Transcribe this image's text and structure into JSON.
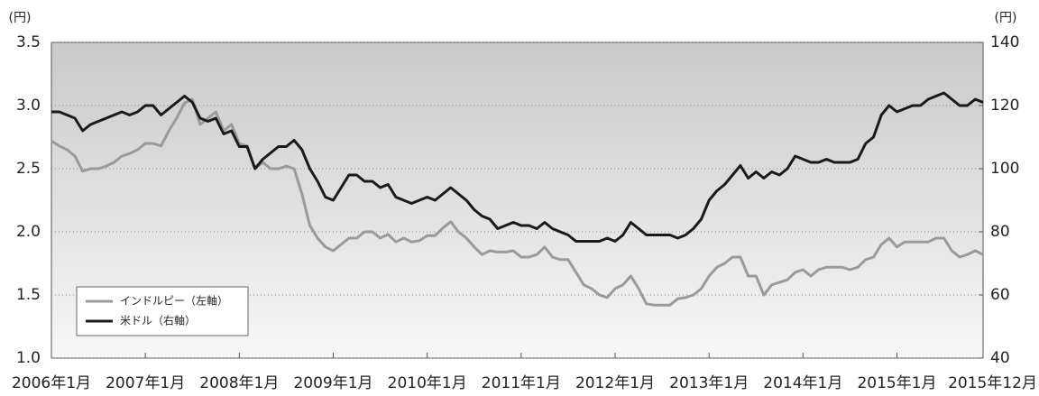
{
  "chart_data": {
    "type": "line",
    "y_unit": "(円)",
    "y2_unit": "(円)",
    "x": [
      "2006-01",
      "2006-02",
      "2006-03",
      "2006-04",
      "2006-05",
      "2006-06",
      "2006-07",
      "2006-08",
      "2006-09",
      "2006-10",
      "2006-11",
      "2006-12",
      "2007-01",
      "2007-02",
      "2007-03",
      "2007-04",
      "2007-05",
      "2007-06",
      "2007-07",
      "2007-08",
      "2007-09",
      "2007-10",
      "2007-11",
      "2007-12",
      "2008-01",
      "2008-02",
      "2008-03",
      "2008-04",
      "2008-05",
      "2008-06",
      "2008-07",
      "2008-08",
      "2008-09",
      "2008-10",
      "2008-11",
      "2008-12",
      "2009-01",
      "2009-02",
      "2009-03",
      "2009-04",
      "2009-05",
      "2009-06",
      "2009-07",
      "2009-08",
      "2009-09",
      "2009-10",
      "2009-11",
      "2009-12",
      "2010-01",
      "2010-02",
      "2010-03",
      "2010-04",
      "2010-05",
      "2010-06",
      "2010-07",
      "2010-08",
      "2010-09",
      "2010-10",
      "2010-11",
      "2010-12",
      "2011-01",
      "2011-02",
      "2011-03",
      "2011-04",
      "2011-05",
      "2011-06",
      "2011-07",
      "2011-08",
      "2011-09",
      "2011-10",
      "2011-11",
      "2011-12",
      "2012-01",
      "2012-02",
      "2012-03",
      "2012-04",
      "2012-05",
      "2012-06",
      "2012-07",
      "2012-08",
      "2012-09",
      "2012-10",
      "2012-11",
      "2012-12",
      "2013-01",
      "2013-02",
      "2013-03",
      "2013-04",
      "2013-05",
      "2013-06",
      "2013-07",
      "2013-08",
      "2013-09",
      "2013-10",
      "2013-11",
      "2013-12",
      "2014-01",
      "2014-02",
      "2014-03",
      "2014-04",
      "2014-05",
      "2014-06",
      "2014-07",
      "2014-08",
      "2014-09",
      "2014-10",
      "2014-11",
      "2014-12",
      "2015-01",
      "2015-02",
      "2015-03",
      "2015-04",
      "2015-05",
      "2015-06",
      "2015-07",
      "2015-08",
      "2015-09",
      "2015-10",
      "2015-11",
      "2015-12"
    ],
    "xlim": [
      "2006-01",
      "2015-12"
    ],
    "xticks": [
      {
        "value": "2006-01",
        "label": "2006年1月"
      },
      {
        "value": "2007-01",
        "label": "2007年1月"
      },
      {
        "value": "2008-01",
        "label": "2008年1月"
      },
      {
        "value": "2009-01",
        "label": "2009年1月"
      },
      {
        "value": "2010-01",
        "label": "2010年1月"
      },
      {
        "value": "2011-01",
        "label": "2011年1月"
      },
      {
        "value": "2012-01",
        "label": "2012年1月"
      },
      {
        "value": "2013-01",
        "label": "2013年1月"
      },
      {
        "value": "2014-01",
        "label": "2014年1月"
      },
      {
        "value": "2015-01",
        "label": "2015年1月"
      },
      {
        "value": "2015-12",
        "label": "2015年12月"
      }
    ],
    "ylim": [
      1.0,
      3.5
    ],
    "yticks": [
      {
        "value": 1.0,
        "label": "1.0"
      },
      1.5,
      {
        "value": 2.0,
        "label": "2.0"
      },
      2.5,
      {
        "value": 3.0,
        "label": "3.0"
      },
      3.5
    ],
    "y2lim": [
      40,
      140
    ],
    "y2ticks": [
      40,
      60,
      80,
      100,
      120,
      140
    ],
    "grid": true,
    "legend": "lower left",
    "series": [
      {
        "name": "インドルピー（左軸）",
        "color": "#9a9a9a",
        "axis": "y",
        "values": [
          2.72,
          2.68,
          2.65,
          2.6,
          2.48,
          2.5,
          2.5,
          2.52,
          2.55,
          2.6,
          2.62,
          2.65,
          2.7,
          2.7,
          2.68,
          2.8,
          2.9,
          3.02,
          3.05,
          2.85,
          2.9,
          2.95,
          2.8,
          2.85,
          2.7,
          2.68,
          2.5,
          2.55,
          2.5,
          2.5,
          2.52,
          2.5,
          2.3,
          2.05,
          1.95,
          1.88,
          1.85,
          1.9,
          1.95,
          1.95,
          2.0,
          2.0,
          1.95,
          1.98,
          1.92,
          1.95,
          1.92,
          1.93,
          1.97,
          1.97,
          2.03,
          2.08,
          2.0,
          1.95,
          1.88,
          1.82,
          1.85,
          1.84,
          1.84,
          1.85,
          1.8,
          1.8,
          1.82,
          1.88,
          1.8,
          1.78,
          1.78,
          1.68,
          1.58,
          1.55,
          1.5,
          1.48,
          1.55,
          1.58,
          1.65,
          1.55,
          1.43,
          1.42,
          1.42,
          1.42,
          1.47,
          1.48,
          1.5,
          1.55,
          1.65,
          1.72,
          1.75,
          1.8,
          1.8,
          1.65,
          1.65,
          1.5,
          1.58,
          1.6,
          1.62,
          1.68,
          1.7,
          1.65,
          1.7,
          1.72,
          1.72,
          1.72,
          1.7,
          1.72,
          1.78,
          1.8,
          1.9,
          1.95,
          1.88,
          1.92,
          1.92,
          1.92,
          1.92,
          1.95,
          1.95,
          1.85,
          1.8,
          1.82,
          1.85,
          1.82
        ]
      },
      {
        "name": "米ドル（右軸）",
        "color": "#1a1a1a",
        "axis": "y2",
        "values": [
          118,
          118,
          117,
          116,
          112,
          114,
          115,
          116,
          117,
          118,
          117,
          118,
          120,
          120,
          117,
          119,
          121,
          123,
          121,
          116,
          115,
          116,
          111,
          112,
          107,
          107,
          100,
          103,
          105,
          107,
          107,
          109,
          106,
          100,
          96,
          91,
          90,
          94,
          98,
          98,
          96,
          96,
          94,
          95,
          91,
          90,
          89,
          90,
          91,
          90,
          92,
          94,
          92,
          90,
          87,
          85,
          84,
          81,
          82,
          83,
          82,
          82,
          81,
          83,
          81,
          80,
          79,
          77,
          77,
          77,
          77,
          78,
          77,
          79,
          83,
          81,
          79,
          79,
          79,
          79,
          78,
          79,
          81,
          84,
          90,
          93,
          95,
          98,
          101,
          97,
          99,
          97,
          99,
          98,
          100,
          104,
          103,
          102,
          102,
          103,
          102,
          102,
          102,
          103,
          108,
          110,
          117,
          120,
          118,
          119,
          120,
          120,
          122,
          123,
          124,
          122,
          120,
          120,
          122,
          121
        ]
      }
    ]
  }
}
